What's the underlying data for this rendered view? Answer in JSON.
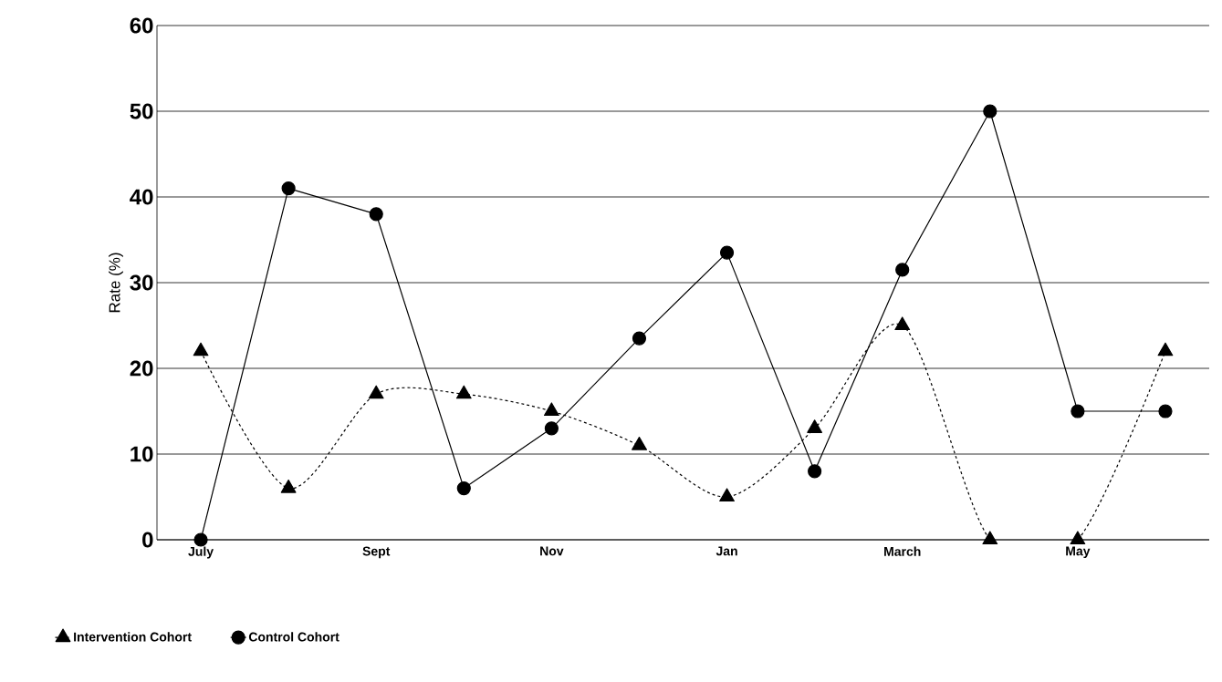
{
  "chart_data": {
    "type": "line",
    "ylabel": "Rate (%)",
    "categories": [
      "July",
      null,
      "Sept",
      null,
      "Nov",
      null,
      "Jan",
      null,
      "March",
      null,
      "May",
      null
    ],
    "series": [
      {
        "name": "Intervention Cohort",
        "color": "#000000",
        "marker": "triangle",
        "line_style": "dashed",
        "values": [
          22,
          6,
          17,
          17,
          15,
          11,
          5,
          13,
          25,
          0,
          0,
          22
        ]
      },
      {
        "name": "Control Cohort",
        "color": "#000000",
        "marker": "circle",
        "line_style": "solid",
        "values": [
          0,
          41,
          38,
          6,
          13,
          23.5,
          33.5,
          8,
          31.5,
          50,
          15,
          15
        ]
      }
    ],
    "ylim": [
      0,
      60
    ],
    "yticks": [
      0,
      10,
      20,
      30,
      40,
      50,
      60
    ],
    "grid": "y",
    "legend": "bottom left"
  }
}
